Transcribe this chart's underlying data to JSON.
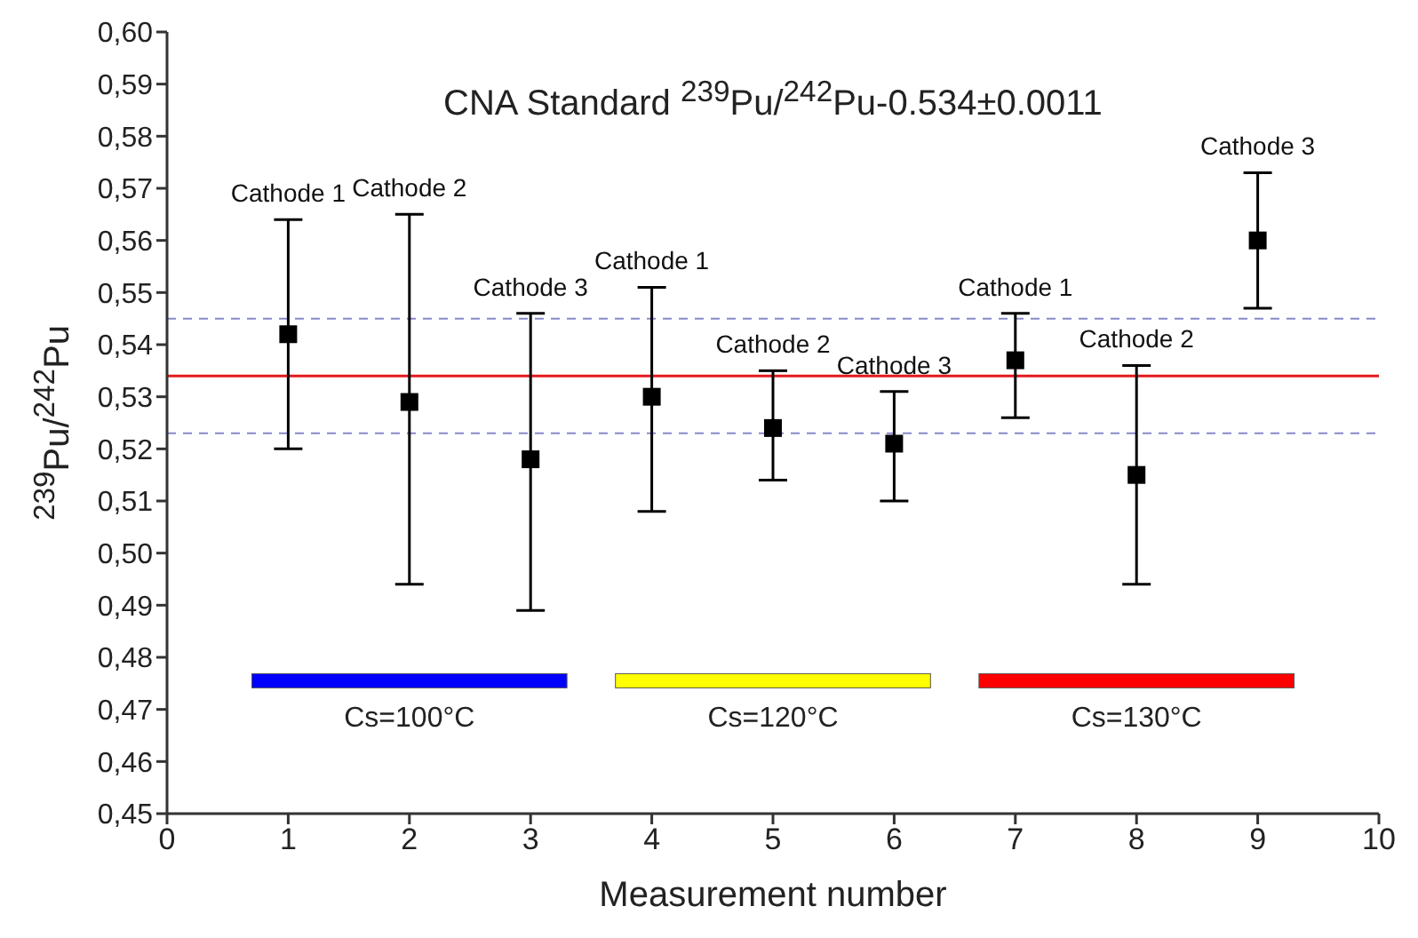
{
  "chart_data": {
    "type": "scatter",
    "title": "CNA Standard  $^{239}$Pu/$^{242}$Pu-0.534±0.0011",
    "xlabel": "Measurement number",
    "ylabel": "$^{239}$Pu/$^{242}$Pu",
    "x": [
      1,
      2,
      3,
      4,
      5,
      6,
      7,
      8,
      9
    ],
    "series": [
      {
        "color": "#000000",
        "values": [
          0.542,
          0.529,
          0.518,
          0.53,
          0.524,
          0.521,
          0.537,
          0.515,
          0.56
        ],
        "errors": [
          [
            0.52,
            0.564
          ],
          [
            0.494,
            0.565
          ],
          [
            0.489,
            0.546
          ],
          [
            0.508,
            0.551
          ],
          [
            0.514,
            0.535
          ],
          [
            0.51,
            0.531
          ],
          [
            0.526,
            0.546
          ],
          [
            0.494,
            0.536
          ],
          [
            0.547,
            0.573
          ]
        ]
      }
    ],
    "marker": "square",
    "legend": false,
    "grid": false,
    "xlim": [
      0,
      10
    ],
    "xticks": [
      0,
      1,
      2,
      3,
      4,
      5,
      6,
      7,
      8,
      9,
      10
    ],
    "ylim": [
      0.45,
      0.6
    ],
    "yticks": [
      {
        "value": 0.45,
        "label": "0,45"
      },
      {
        "value": 0.46,
        "label": "0,46"
      },
      {
        "value": 0.47,
        "label": "0,47"
      },
      {
        "value": 0.48,
        "label": "0,48"
      },
      {
        "value": 0.49,
        "label": "0,49"
      },
      {
        "value": 0.5,
        "label": "0,50"
      },
      {
        "value": 0.51,
        "label": "0,51"
      },
      {
        "value": 0.52,
        "label": "0,52"
      },
      {
        "value": 0.53,
        "label": "0,53"
      },
      {
        "value": 0.54,
        "label": "0,54"
      },
      {
        "value": 0.55,
        "label": "0,55"
      },
      {
        "value": 0.56,
        "label": "0,56"
      },
      {
        "value": 0.57,
        "label": "0,57"
      },
      {
        "value": 0.58,
        "label": "0,58"
      },
      {
        "value": 0.59,
        "label": "0,59"
      },
      {
        "value": 0.6,
        "label": "0,60"
      }
    ],
    "ref_lines": [
      {
        "axis": "y",
        "value": 0.534,
        "color": "#e31a1c",
        "line_style": "solid"
      },
      {
        "axis": "y",
        "value": 0.545,
        "color": "#8888cc",
        "line_style": "dashed"
      },
      {
        "axis": "y",
        "value": 0.523,
        "color": "#8888cc",
        "line_style": "dashed"
      }
    ],
    "annotations": [
      {
        "text": "Cathode 1",
        "x": 1,
        "y": 0.564
      },
      {
        "text": "Cathode 2",
        "x": 2,
        "y": 0.565
      },
      {
        "text": "Cathode 3",
        "x": 3,
        "y": 0.546
      },
      {
        "text": "Cathode 1",
        "x": 4,
        "y": 0.551
      },
      {
        "text": "Cathode 2",
        "x": 5,
        "y": 0.535
      },
      {
        "text": "Cathode 3",
        "x": 6,
        "y": 0.531
      },
      {
        "text": "Cathode 1",
        "x": 7,
        "y": 0.546
      },
      {
        "text": "Cathode 2",
        "x": 8,
        "y": 0.536
      },
      {
        "text": "Cathode 3",
        "x": 9,
        "y": 0.573
      },
      "Cs=100°C",
      "Cs=120°C",
      "Cs=130°C"
    ]
  }
}
